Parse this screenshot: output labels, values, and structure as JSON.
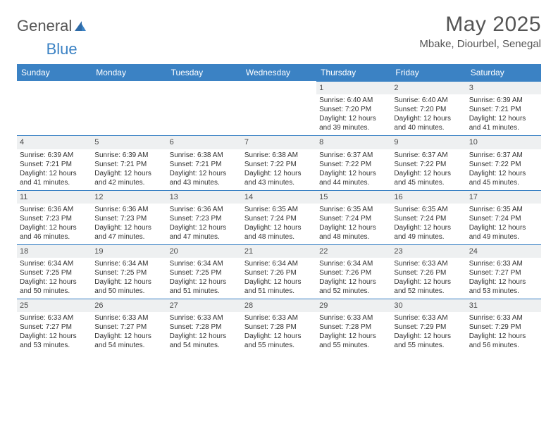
{
  "logo": {
    "text_a": "General",
    "text_b": "Blue"
  },
  "title": "May 2025",
  "location": "Mbake, Diourbel, Senegal",
  "colors": {
    "header_bg": "#3b82c4",
    "header_text": "#ffffff",
    "daynum_bg": "#eef0f1",
    "daynum_border": "#3b82c4",
    "page_bg": "#ffffff",
    "text": "#333333",
    "title_color": "#555555"
  },
  "typography": {
    "month_title_fontsize": 30,
    "location_fontsize": 15,
    "dayheader_fontsize": 12,
    "daynum_fontsize": 11,
    "body_fontsize": 10,
    "font_family": "Arial"
  },
  "day_labels": [
    "Sunday",
    "Monday",
    "Tuesday",
    "Wednesday",
    "Thursday",
    "Friday",
    "Saturday"
  ],
  "weeks": [
    [
      {
        "empty": true
      },
      {
        "empty": true
      },
      {
        "empty": true
      },
      {
        "empty": true
      },
      {
        "n": "1",
        "sunrise": "Sunrise: 6:40 AM",
        "sunset": "Sunset: 7:20 PM",
        "d1": "Daylight: 12 hours",
        "d2": "and 39 minutes."
      },
      {
        "n": "2",
        "sunrise": "Sunrise: 6:40 AM",
        "sunset": "Sunset: 7:20 PM",
        "d1": "Daylight: 12 hours",
        "d2": "and 40 minutes."
      },
      {
        "n": "3",
        "sunrise": "Sunrise: 6:39 AM",
        "sunset": "Sunset: 7:21 PM",
        "d1": "Daylight: 12 hours",
        "d2": "and 41 minutes."
      }
    ],
    [
      {
        "n": "4",
        "sunrise": "Sunrise: 6:39 AM",
        "sunset": "Sunset: 7:21 PM",
        "d1": "Daylight: 12 hours",
        "d2": "and 41 minutes."
      },
      {
        "n": "5",
        "sunrise": "Sunrise: 6:39 AM",
        "sunset": "Sunset: 7:21 PM",
        "d1": "Daylight: 12 hours",
        "d2": "and 42 minutes."
      },
      {
        "n": "6",
        "sunrise": "Sunrise: 6:38 AM",
        "sunset": "Sunset: 7:21 PM",
        "d1": "Daylight: 12 hours",
        "d2": "and 43 minutes."
      },
      {
        "n": "7",
        "sunrise": "Sunrise: 6:38 AM",
        "sunset": "Sunset: 7:22 PM",
        "d1": "Daylight: 12 hours",
        "d2": "and 43 minutes."
      },
      {
        "n": "8",
        "sunrise": "Sunrise: 6:37 AM",
        "sunset": "Sunset: 7:22 PM",
        "d1": "Daylight: 12 hours",
        "d2": "and 44 minutes."
      },
      {
        "n": "9",
        "sunrise": "Sunrise: 6:37 AM",
        "sunset": "Sunset: 7:22 PM",
        "d1": "Daylight: 12 hours",
        "d2": "and 45 minutes."
      },
      {
        "n": "10",
        "sunrise": "Sunrise: 6:37 AM",
        "sunset": "Sunset: 7:22 PM",
        "d1": "Daylight: 12 hours",
        "d2": "and 45 minutes."
      }
    ],
    [
      {
        "n": "11",
        "sunrise": "Sunrise: 6:36 AM",
        "sunset": "Sunset: 7:23 PM",
        "d1": "Daylight: 12 hours",
        "d2": "and 46 minutes."
      },
      {
        "n": "12",
        "sunrise": "Sunrise: 6:36 AM",
        "sunset": "Sunset: 7:23 PM",
        "d1": "Daylight: 12 hours",
        "d2": "and 47 minutes."
      },
      {
        "n": "13",
        "sunrise": "Sunrise: 6:36 AM",
        "sunset": "Sunset: 7:23 PM",
        "d1": "Daylight: 12 hours",
        "d2": "and 47 minutes."
      },
      {
        "n": "14",
        "sunrise": "Sunrise: 6:35 AM",
        "sunset": "Sunset: 7:24 PM",
        "d1": "Daylight: 12 hours",
        "d2": "and 48 minutes."
      },
      {
        "n": "15",
        "sunrise": "Sunrise: 6:35 AM",
        "sunset": "Sunset: 7:24 PM",
        "d1": "Daylight: 12 hours",
        "d2": "and 48 minutes."
      },
      {
        "n": "16",
        "sunrise": "Sunrise: 6:35 AM",
        "sunset": "Sunset: 7:24 PM",
        "d1": "Daylight: 12 hours",
        "d2": "and 49 minutes."
      },
      {
        "n": "17",
        "sunrise": "Sunrise: 6:35 AM",
        "sunset": "Sunset: 7:24 PM",
        "d1": "Daylight: 12 hours",
        "d2": "and 49 minutes."
      }
    ],
    [
      {
        "n": "18",
        "sunrise": "Sunrise: 6:34 AM",
        "sunset": "Sunset: 7:25 PM",
        "d1": "Daylight: 12 hours",
        "d2": "and 50 minutes."
      },
      {
        "n": "19",
        "sunrise": "Sunrise: 6:34 AM",
        "sunset": "Sunset: 7:25 PM",
        "d1": "Daylight: 12 hours",
        "d2": "and 50 minutes."
      },
      {
        "n": "20",
        "sunrise": "Sunrise: 6:34 AM",
        "sunset": "Sunset: 7:25 PM",
        "d1": "Daylight: 12 hours",
        "d2": "and 51 minutes."
      },
      {
        "n": "21",
        "sunrise": "Sunrise: 6:34 AM",
        "sunset": "Sunset: 7:26 PM",
        "d1": "Daylight: 12 hours",
        "d2": "and 51 minutes."
      },
      {
        "n": "22",
        "sunrise": "Sunrise: 6:34 AM",
        "sunset": "Sunset: 7:26 PM",
        "d1": "Daylight: 12 hours",
        "d2": "and 52 minutes."
      },
      {
        "n": "23",
        "sunrise": "Sunrise: 6:33 AM",
        "sunset": "Sunset: 7:26 PM",
        "d1": "Daylight: 12 hours",
        "d2": "and 52 minutes."
      },
      {
        "n": "24",
        "sunrise": "Sunrise: 6:33 AM",
        "sunset": "Sunset: 7:27 PM",
        "d1": "Daylight: 12 hours",
        "d2": "and 53 minutes."
      }
    ],
    [
      {
        "n": "25",
        "sunrise": "Sunrise: 6:33 AM",
        "sunset": "Sunset: 7:27 PM",
        "d1": "Daylight: 12 hours",
        "d2": "and 53 minutes."
      },
      {
        "n": "26",
        "sunrise": "Sunrise: 6:33 AM",
        "sunset": "Sunset: 7:27 PM",
        "d1": "Daylight: 12 hours",
        "d2": "and 54 minutes."
      },
      {
        "n": "27",
        "sunrise": "Sunrise: 6:33 AM",
        "sunset": "Sunset: 7:28 PM",
        "d1": "Daylight: 12 hours",
        "d2": "and 54 minutes."
      },
      {
        "n": "28",
        "sunrise": "Sunrise: 6:33 AM",
        "sunset": "Sunset: 7:28 PM",
        "d1": "Daylight: 12 hours",
        "d2": "and 55 minutes."
      },
      {
        "n": "29",
        "sunrise": "Sunrise: 6:33 AM",
        "sunset": "Sunset: 7:28 PM",
        "d1": "Daylight: 12 hours",
        "d2": "and 55 minutes."
      },
      {
        "n": "30",
        "sunrise": "Sunrise: 6:33 AM",
        "sunset": "Sunset: 7:29 PM",
        "d1": "Daylight: 12 hours",
        "d2": "and 55 minutes."
      },
      {
        "n": "31",
        "sunrise": "Sunrise: 6:33 AM",
        "sunset": "Sunset: 7:29 PM",
        "d1": "Daylight: 12 hours",
        "d2": "and 56 minutes."
      }
    ]
  ]
}
